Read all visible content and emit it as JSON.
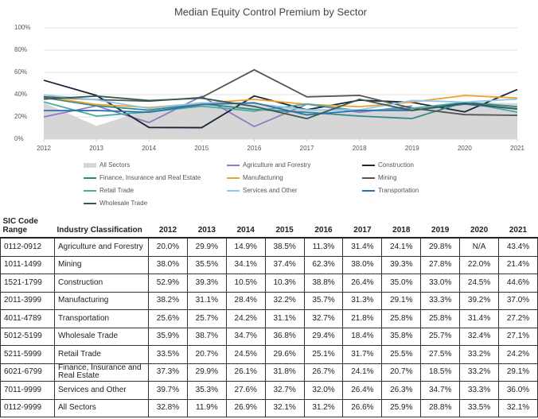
{
  "chart_data": {
    "type": "line",
    "title": "Median Equity Control Premium by Sector",
    "x": [
      2012,
      2013,
      2014,
      2015,
      2016,
      2017,
      2018,
      2019,
      2020,
      2021
    ],
    "xlim": [
      2012,
      2021
    ],
    "xticks": [
      2012,
      2013,
      2014,
      2015,
      2016,
      2017,
      2018,
      2019,
      2020,
      2021
    ],
    "ylim": [
      0,
      100
    ],
    "yticks": [
      {
        "value": 0,
        "label": "0%"
      },
      {
        "value": 20,
        "label": "20%"
      },
      {
        "value": 40,
        "label": "40%"
      },
      {
        "value": 60,
        "label": "60%"
      },
      {
        "value": 80,
        "label": "80%"
      },
      {
        "value": 100,
        "label": "100%"
      }
    ],
    "grid": true,
    "series": [
      {
        "name": "All Sectors",
        "kind": "area",
        "color": "#d6d6d6",
        "values": [
          32.8,
          11.9,
          26.9,
          32.1,
          31.2,
          26.6,
          25.9,
          28.8,
          33.5,
          32.1
        ]
      },
      {
        "name": "Agriculture and Forestry",
        "color": "#8e7cc3",
        "values": [
          20.0,
          29.9,
          14.9,
          38.5,
          11.3,
          31.4,
          24.1,
          29.8,
          null,
          43.4
        ]
      },
      {
        "name": "Construction",
        "color": "#17263a",
        "values": [
          52.9,
          39.3,
          10.5,
          10.3,
          38.8,
          26.4,
          35.0,
          33.0,
          24.5,
          44.6
        ]
      },
      {
        "name": "Finance, Insurance and Real Estate",
        "color": "#2e8b8b",
        "values": [
          37.3,
          29.9,
          26.1,
          31.8,
          26.7,
          24.1,
          20.7,
          18.5,
          33.2,
          29.1
        ]
      },
      {
        "name": "Manufacturing",
        "color": "#f0a030",
        "values": [
          38.2,
          31.1,
          28.4,
          32.2,
          35.7,
          31.3,
          29.1,
          33.3,
          39.2,
          37.0
        ]
      },
      {
        "name": "Mining",
        "color": "#555555",
        "values": [
          38.0,
          35.5,
          34.1,
          37.4,
          62.3,
          38.0,
          39.3,
          27.8,
          22.0,
          21.4
        ]
      },
      {
        "name": "Retail Trade",
        "color": "#4aaaa0",
        "values": [
          33.5,
          20.7,
          24.5,
          29.6,
          25.1,
          31.7,
          25.5,
          27.5,
          33.2,
          24.2
        ]
      },
      {
        "name": "Services and Other",
        "color": "#8ec8e8",
        "values": [
          39.7,
          35.3,
          27.6,
          32.7,
          32.0,
          26.4,
          26.3,
          34.7,
          33.3,
          36.0
        ]
      },
      {
        "name": "Transportation",
        "color": "#2e6fb0",
        "values": [
          25.6,
          25.7,
          24.2,
          31.1,
          32.7,
          21.8,
          25.8,
          25.8,
          31.4,
          27.2
        ]
      },
      {
        "name": "Wholesale Trade",
        "color": "#3a5a50",
        "values": [
          35.9,
          38.7,
          34.7,
          36.8,
          29.4,
          18.4,
          35.8,
          25.7,
          32.4,
          27.1
        ]
      }
    ]
  },
  "table": {
    "header": [
      "SIC Code Range",
      "Industry Classification",
      "2012",
      "2013",
      "2014",
      "2015",
      "2016",
      "2017",
      "2018",
      "2019",
      "2020",
      "2021"
    ],
    "rows": [
      [
        "0112-0912",
        "Agriculture and Forestry",
        "20.0%",
        "29.9%",
        "14.9%",
        "38.5%",
        "11.3%",
        "31.4%",
        "24.1%",
        "29.8%",
        "N/A",
        "43.4%"
      ],
      [
        "1011-1499",
        "Mining",
        "38.0%",
        "35.5%",
        "34.1%",
        "37.4%",
        "62.3%",
        "38.0%",
        "39.3%",
        "27.8%",
        "22.0%",
        "21.4%"
      ],
      [
        "1521-1799",
        "Construction",
        "52.9%",
        "39.3%",
        "10.5%",
        "10.3%",
        "38.8%",
        "26.4%",
        "35.0%",
        "33.0%",
        "24.5%",
        "44.6%"
      ],
      [
        "2011-3999",
        "Manufacturing",
        "38.2%",
        "31.1%",
        "28.4%",
        "32.2%",
        "35.7%",
        "31.3%",
        "29.1%",
        "33.3%",
        "39.2%",
        "37.0%"
      ],
      [
        "4011-4789",
        "Transportation",
        "25.6%",
        "25.7%",
        "24.2%",
        "31.1%",
        "32.7%",
        "21.8%",
        "25.8%",
        "25.8%",
        "31.4%",
        "27.2%"
      ],
      [
        "5012-5199",
        "Wholesale Trade",
        "35.9%",
        "38.7%",
        "34.7%",
        "36.8%",
        "29.4%",
        "18.4%",
        "35.8%",
        "25.7%",
        "32.4%",
        "27.1%"
      ],
      [
        "5211-5999",
        "Retail Trade",
        "33.5%",
        "20.7%",
        "24.5%",
        "29.6%",
        "25.1%",
        "31.7%",
        "25.5%",
        "27.5%",
        "33.2%",
        "24.2%"
      ],
      [
        "6021-6799",
        "Finance, Insurance and Real Estate",
        "37.3%",
        "29.9%",
        "26.1%",
        "31.8%",
        "26.7%",
        "24.1%",
        "20.7%",
        "18.5%",
        "33.2%",
        "29.1%"
      ],
      [
        "7011-9999",
        "Services and Other",
        "39.7%",
        "35.3%",
        "27.6%",
        "32.7%",
        "32.0%",
        "26.4%",
        "26.3%",
        "34.7%",
        "33.3%",
        "36.0%"
      ],
      [
        "0112-9999",
        "All Sectors",
        "32.8%",
        "11.9%",
        "26.9%",
        "32.1%",
        "31.2%",
        "26.6%",
        "25.9%",
        "28.8%",
        "33.5%",
        "32.1%"
      ]
    ]
  }
}
